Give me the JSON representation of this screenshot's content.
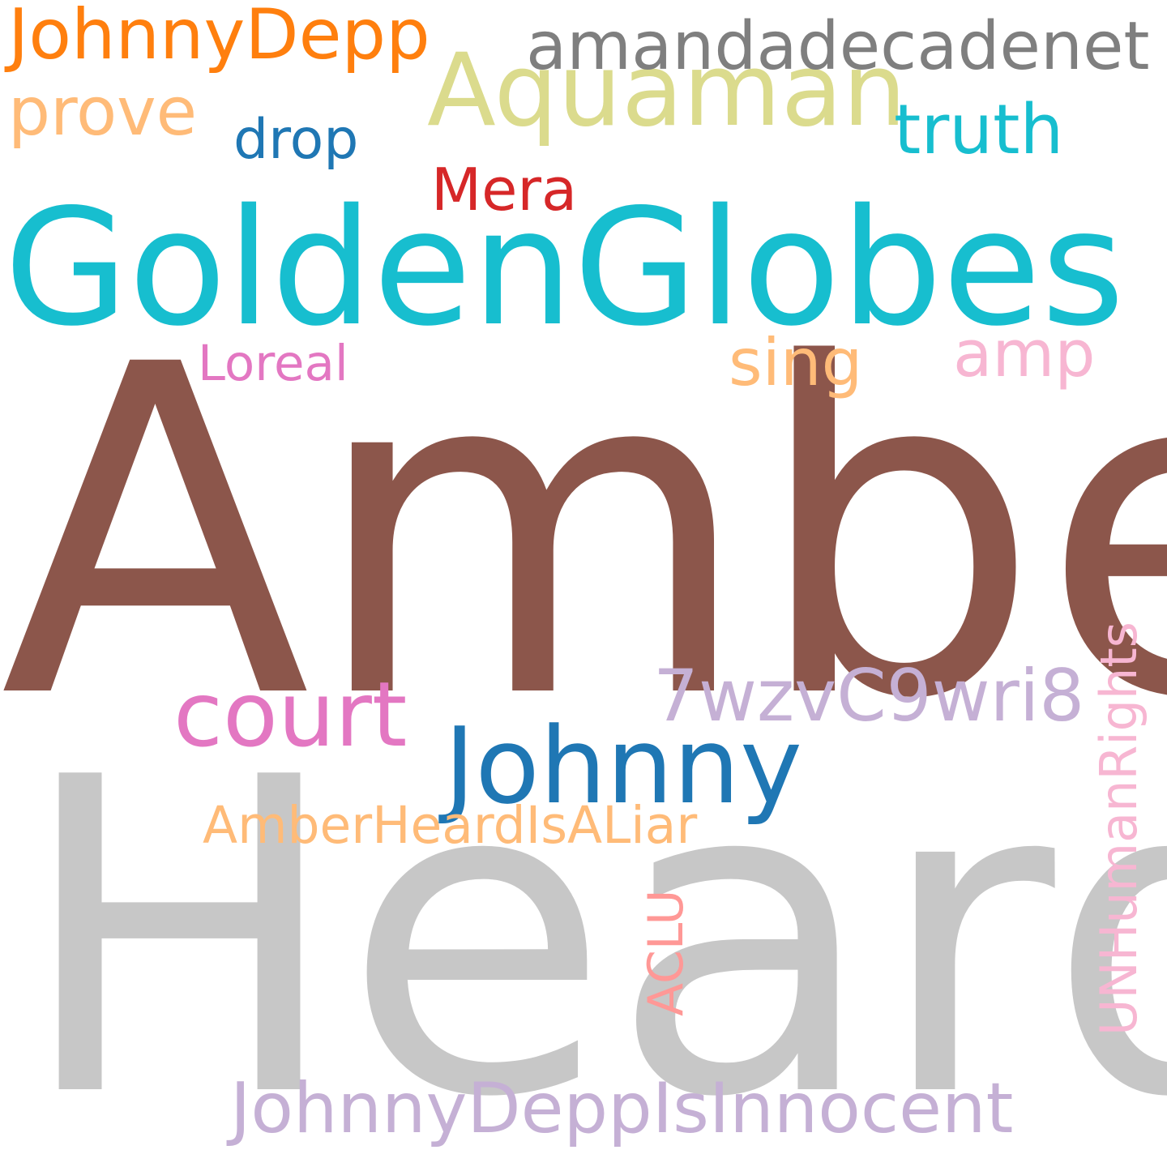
{
  "words": {
    "amber": {
      "text": "Amber",
      "color": "#8c564b"
    },
    "heard": {
      "text": "Heard",
      "color": "#c7c7c7"
    },
    "goldenglobes": {
      "text": "GoldenGlobes",
      "color": "#17becf"
    },
    "aquaman": {
      "text": "Aquaman",
      "color": "#dbdb8d"
    },
    "johnnydepp": {
      "text": "JohnnyDepp",
      "color": "#ff7f0e"
    },
    "amandadecadenet": {
      "text": "amandadecadenet",
      "color": "#7f7f7f"
    },
    "prove": {
      "text": "prove",
      "color": "#ffbb78"
    },
    "drop": {
      "text": "drop",
      "color": "#1f77b4"
    },
    "truth": {
      "text": "truth",
      "color": "#17becf"
    },
    "mera": {
      "text": "Mera",
      "color": "#d62728"
    },
    "loreal": {
      "text": "Loreal",
      "color": "#e377c2"
    },
    "sing": {
      "text": "sing",
      "color": "#ffbb78"
    },
    "amp": {
      "text": "amp",
      "color": "#f7b6d2"
    },
    "court": {
      "text": "court",
      "color": "#e377c2"
    },
    "code": {
      "text": "7wzvC9wri8",
      "color": "#c5b0d5"
    },
    "johnny": {
      "text": "Johnny",
      "color": "#1f77b4"
    },
    "amberheardisaliar": {
      "text": "AmberHeardIsALiar",
      "color": "#ffbb78"
    },
    "aclu": {
      "text": "ACLU",
      "color": "#ff9896"
    },
    "unhumanrights": {
      "text": "UNHumanRights",
      "color": "#f7b6d2"
    },
    "johnnydeppisinnocent": {
      "text": "JohnnyDeppIsInnocent",
      "color": "#c5b0d5"
    }
  }
}
